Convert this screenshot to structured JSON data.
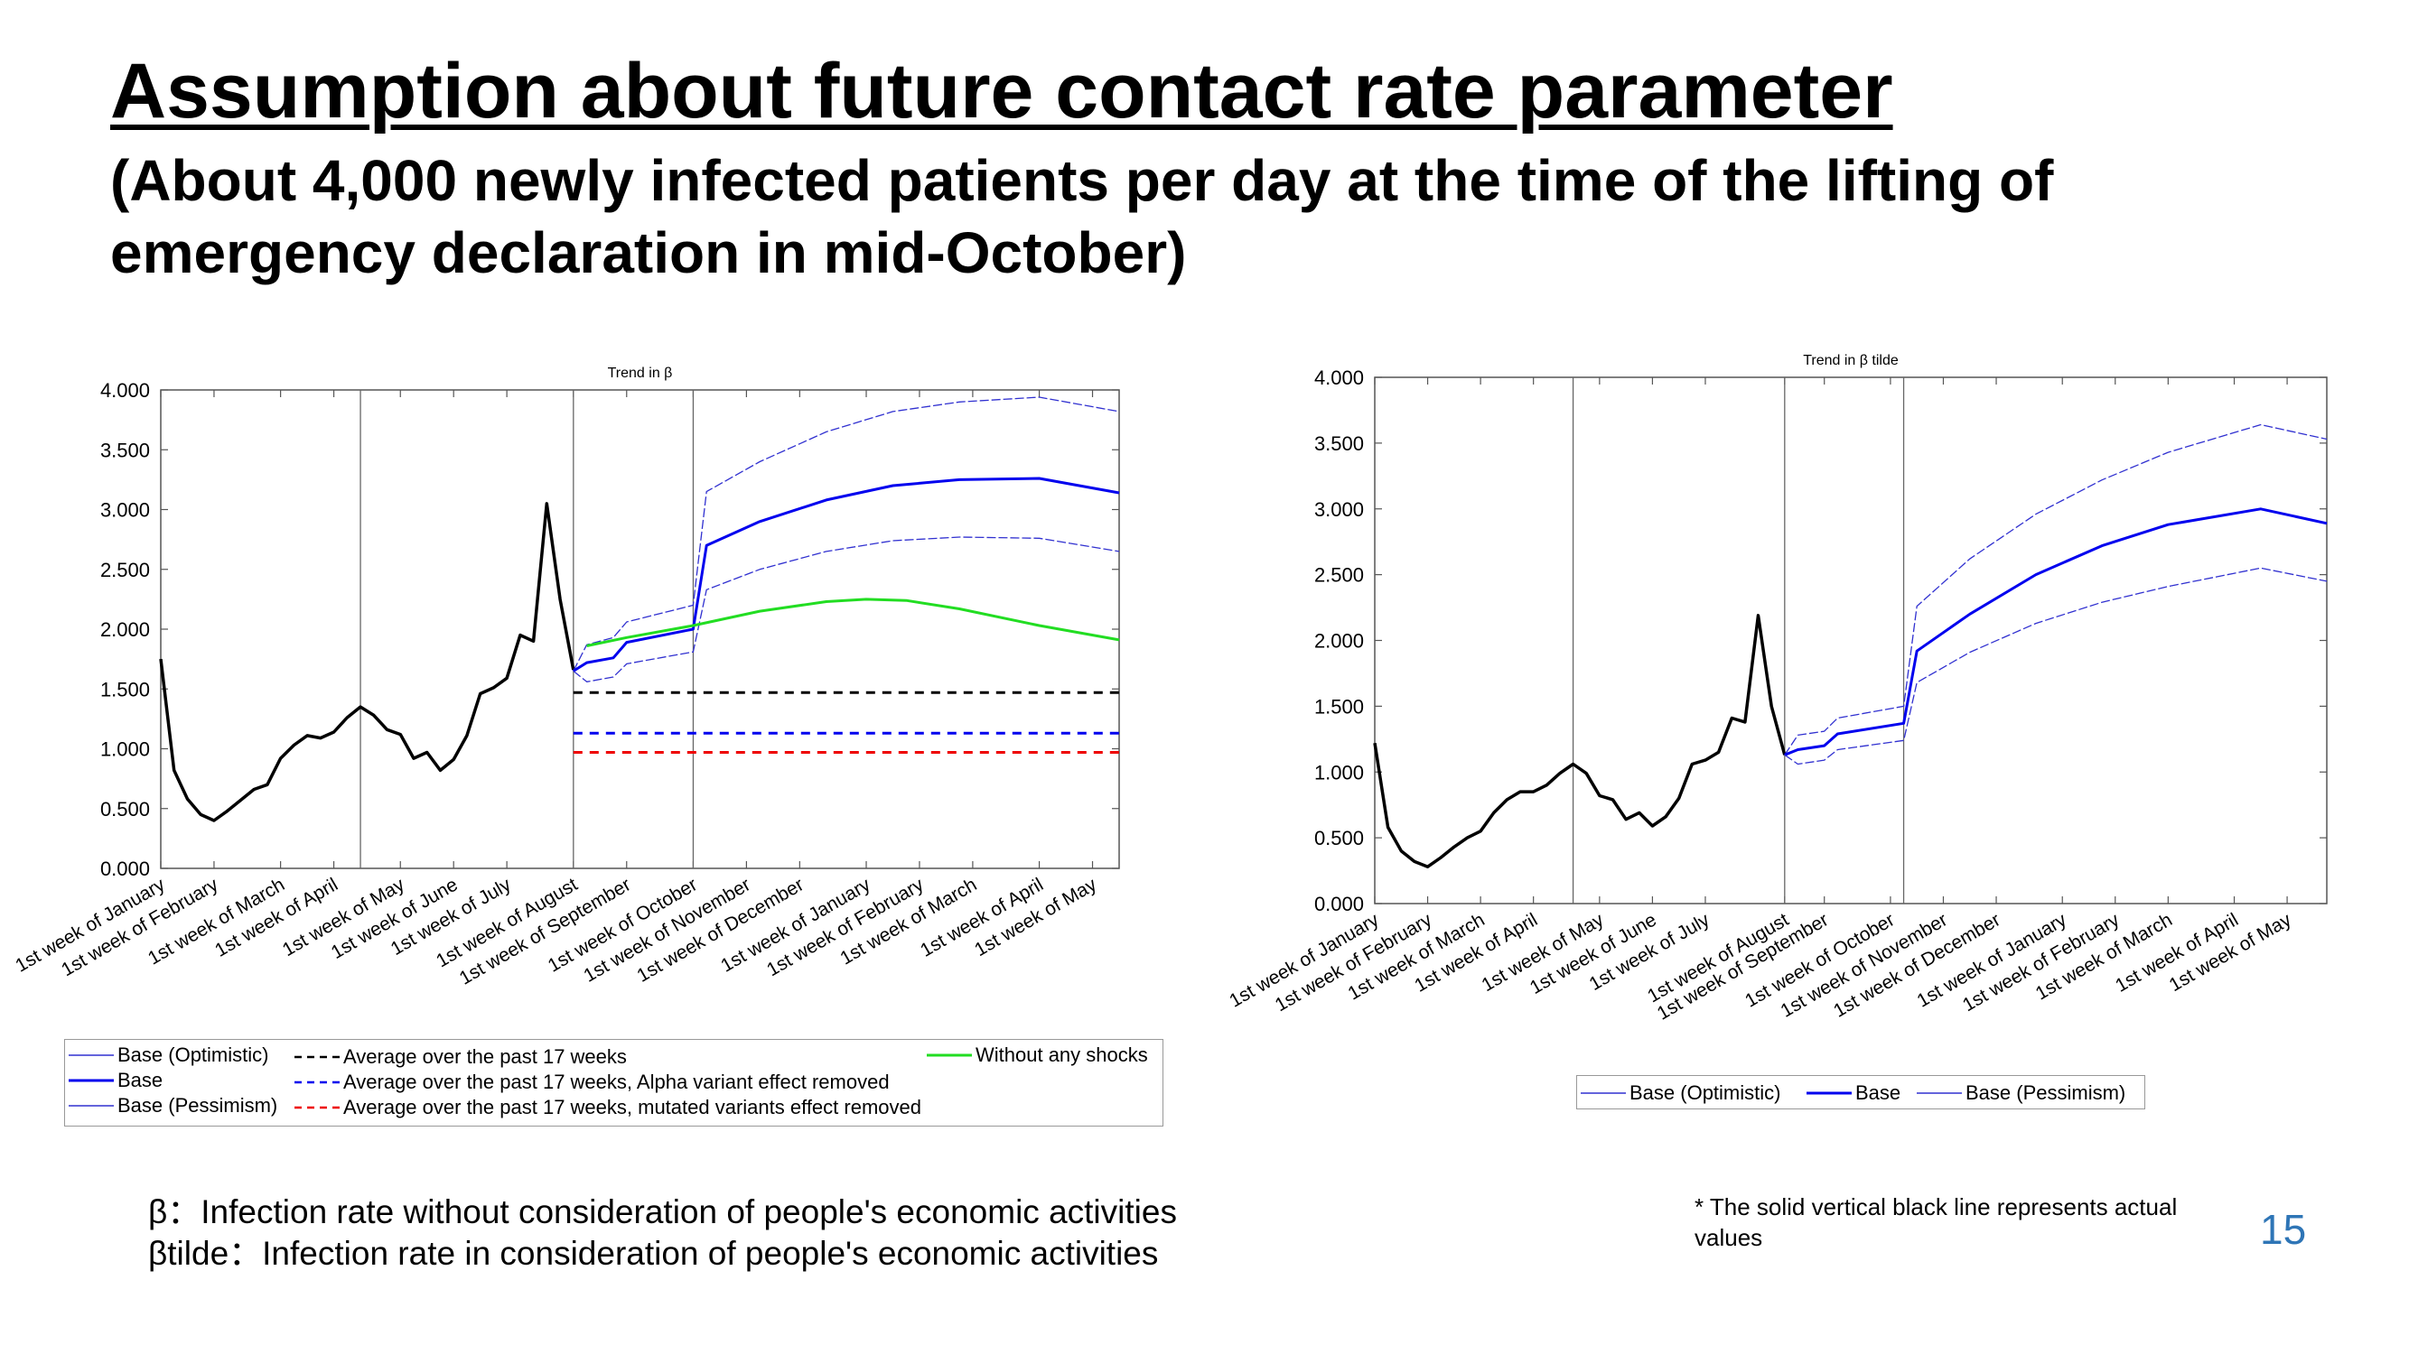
{
  "header": {
    "title": "Assumption about future contact rate parameter",
    "subtitle": "(About 4,000 newly infected patients per day at the time of the lifting of emergency declaration in mid-October)"
  },
  "chart_data": [
    {
      "type": "line",
      "title": "Trend in β",
      "ylim": [
        0,
        4
      ],
      "yticks": [
        "0.000",
        "0.500",
        "1.000",
        "1.500",
        "2.000",
        "2.500",
        "3.000",
        "3.500",
        "4.000"
      ],
      "x_unit": "weeks since 1st week of January",
      "xlim": [
        0,
        72
      ],
      "xticks": [
        {
          "week": 0,
          "label": "1st week of January"
        },
        {
          "week": 4,
          "label": "1st week of February"
        },
        {
          "week": 9,
          "label": "1st week of March"
        },
        {
          "week": 13,
          "label": "1st week of April"
        },
        {
          "week": 18,
          "label": "1st week of May"
        },
        {
          "week": 22,
          "label": "1st week of June"
        },
        {
          "week": 26,
          "label": "1st week of July"
        },
        {
          "week": 31,
          "label": "1st week of August"
        },
        {
          "week": 35,
          "label": "1st week of September"
        },
        {
          "week": 40,
          "label": "1st week of October"
        },
        {
          "week": 44,
          "label": "1st week of November"
        },
        {
          "week": 48,
          "label": "1st week of December"
        },
        {
          "week": 53,
          "label": "1st week of January"
        },
        {
          "week": 57,
          "label": "1st week of February"
        },
        {
          "week": 61,
          "label": "1st week of March"
        },
        {
          "week": 66,
          "label": "1st week of April"
        },
        {
          "week": 70,
          "label": "1st week of May"
        }
      ],
      "vlines": [
        15,
        31,
        40
      ],
      "series": [
        {
          "name": "Actual",
          "color": "#000000",
          "style": "solid-thick",
          "x": [
            0,
            1,
            2,
            3,
            4,
            5,
            6,
            7,
            8,
            9,
            10,
            11,
            12,
            13,
            14,
            15,
            16,
            17,
            18,
            19,
            20,
            21,
            22,
            23,
            24,
            25,
            26,
            27,
            28,
            29,
            30,
            31
          ],
          "y": [
            1.75,
            0.82,
            0.58,
            0.45,
            0.4,
            0.48,
            0.57,
            0.66,
            0.7,
            0.92,
            1.03,
            1.11,
            1.09,
            1.14,
            1.26,
            1.35,
            1.28,
            1.16,
            1.12,
            0.92,
            0.97,
            0.82,
            0.91,
            1.11,
            1.46,
            1.51,
            1.59,
            1.95,
            1.9,
            3.05,
            2.25,
            1.66
          ]
        },
        {
          "name": "Base (Optimistic)",
          "color": "#3030d0",
          "style": "thin-dash",
          "x": [
            31,
            32,
            34,
            35,
            40,
            41,
            45,
            50,
            55,
            60,
            66,
            72
          ],
          "y": [
            1.65,
            1.87,
            1.93,
            2.06,
            2.2,
            3.15,
            3.4,
            3.65,
            3.82,
            3.9,
            3.94,
            3.82
          ]
        },
        {
          "name": "Base",
          "color": "#0000ee",
          "style": "solid",
          "x": [
            31,
            32,
            34,
            35,
            40,
            41,
            45,
            50,
            55,
            60,
            66,
            72
          ],
          "y": [
            1.65,
            1.72,
            1.76,
            1.89,
            2.0,
            2.7,
            2.9,
            3.08,
            3.2,
            3.25,
            3.26,
            3.14
          ]
        },
        {
          "name": "Base (Pessimism)",
          "color": "#3030d0",
          "style": "thin-dash",
          "x": [
            31,
            32,
            34,
            35,
            40,
            41,
            45,
            50,
            55,
            60,
            66,
            72
          ],
          "y": [
            1.65,
            1.56,
            1.6,
            1.71,
            1.81,
            2.33,
            2.5,
            2.65,
            2.74,
            2.77,
            2.76,
            2.65
          ]
        },
        {
          "name": "Average over the past 17 weeks",
          "color": "#000000",
          "style": "dash",
          "x": [
            31,
            72
          ],
          "y": [
            1.47,
            1.47
          ]
        },
        {
          "name": "Average over the past 17 weeks, Alpha variant effect removed",
          "color": "#0000ee",
          "style": "dash",
          "x": [
            31,
            72
          ],
          "y": [
            1.13,
            1.13
          ]
        },
        {
          "name": "Average over the past 17 weeks, mutated variants effect removed",
          "color": "#ee0000",
          "style": "dash",
          "x": [
            31,
            72
          ],
          "y": [
            0.97,
            0.97
          ]
        },
        {
          "name": "Without any shocks",
          "color": "#22dd22",
          "style": "solid",
          "x": [
            32,
            35,
            40,
            45,
            50,
            53,
            56,
            60,
            66,
            72
          ],
          "y": [
            1.86,
            1.93,
            2.03,
            2.15,
            2.23,
            2.25,
            2.24,
            2.17,
            2.03,
            1.91
          ]
        }
      ],
      "legend": [
        "Base (Optimistic)",
        "Base",
        "Base (Pessimism)",
        "Average over the past 17 weeks",
        "Average over the past 17 weeks, Alpha variant effect removed",
        "Average over the past 17 weeks, mutated variants effect removed",
        "Without any shocks"
      ]
    },
    {
      "type": "line",
      "title": "Trend in β tilde",
      "ylim": [
        0,
        4
      ],
      "yticks": [
        "0.000",
        "0.500",
        "1.000",
        "1.500",
        "2.000",
        "2.500",
        "3.000",
        "3.500",
        "4.000"
      ],
      "x_unit": "weeks since 1st week of January",
      "xlim": [
        0,
        72
      ],
      "xticks": [
        {
          "week": 0,
          "label": "1st week of January"
        },
        {
          "week": 4,
          "label": "1st week of February"
        },
        {
          "week": 8,
          "label": "1st week of March"
        },
        {
          "week": 12,
          "label": "1st week of April"
        },
        {
          "week": 17,
          "label": "1st week of May"
        },
        {
          "week": 21,
          "label": "1st week of June"
        },
        {
          "week": 25,
          "label": "1st week of July"
        },
        {
          "week": 31,
          "label": "1st week of August"
        },
        {
          "week": 34,
          "label": "1st week of September"
        },
        {
          "week": 39,
          "label": "1st week of October"
        },
        {
          "week": 43,
          "label": "1st week of November"
        },
        {
          "week": 47,
          "label": "1st week of December"
        },
        {
          "week": 52,
          "label": "1st week of January"
        },
        {
          "week": 56,
          "label": "1st week of February"
        },
        {
          "week": 60,
          "label": "1st week of March"
        },
        {
          "week": 65,
          "label": "1st week of April"
        },
        {
          "week": 69,
          "label": "1st week of May"
        }
      ],
      "vlines": [
        15,
        31,
        40
      ],
      "series": [
        {
          "name": "Actual",
          "color": "#000000",
          "style": "solid-thick",
          "x": [
            0,
            1,
            2,
            3,
            4,
            5,
            6,
            7,
            8,
            9,
            10,
            11,
            12,
            13,
            14,
            15,
            16,
            17,
            18,
            19,
            20,
            21,
            22,
            23,
            24,
            25,
            26,
            27,
            28,
            29,
            30,
            31
          ],
          "y": [
            1.22,
            0.58,
            0.4,
            0.32,
            0.28,
            0.35,
            0.43,
            0.5,
            0.55,
            0.69,
            0.79,
            0.85,
            0.85,
            0.9,
            0.99,
            1.06,
            0.99,
            0.82,
            0.79,
            0.64,
            0.69,
            0.59,
            0.66,
            0.8,
            1.06,
            1.09,
            1.15,
            1.41,
            1.38,
            2.19,
            1.5,
            1.13
          ]
        },
        {
          "name": "Base (Optimistic)",
          "color": "#3030d0",
          "style": "thin-dash",
          "x": [
            31,
            32,
            34,
            35,
            40,
            41,
            45,
            50,
            55,
            60,
            67,
            72
          ],
          "y": [
            1.13,
            1.28,
            1.31,
            1.41,
            1.5,
            2.26,
            2.62,
            2.96,
            3.22,
            3.43,
            3.64,
            3.53
          ]
        },
        {
          "name": "Base",
          "color": "#0000ee",
          "style": "solid",
          "x": [
            31,
            32,
            34,
            35,
            40,
            41,
            45,
            50,
            55,
            60,
            67,
            72
          ],
          "y": [
            1.13,
            1.17,
            1.2,
            1.29,
            1.37,
            1.92,
            2.2,
            2.5,
            2.72,
            2.88,
            3.0,
            2.89
          ]
        },
        {
          "name": "Base (Pessimism)",
          "color": "#3030d0",
          "style": "thin-dash",
          "x": [
            31,
            32,
            34,
            35,
            40,
            41,
            45,
            50,
            55,
            60,
            67,
            72
          ],
          "y": [
            1.13,
            1.06,
            1.09,
            1.17,
            1.24,
            1.68,
            1.91,
            2.13,
            2.29,
            2.41,
            2.55,
            2.45
          ]
        }
      ],
      "legend": [
        "Base (Optimistic)",
        "Base",
        "Base (Pessimism)"
      ]
    }
  ],
  "footer": {
    "beta_def": "β：Infection rate without consideration of people's economic activities",
    "beta_tilde_def": "βtilde：Infection rate in consideration of people's economic activities",
    "note": "* The solid vertical black line represents actual values",
    "page_number": "15"
  }
}
